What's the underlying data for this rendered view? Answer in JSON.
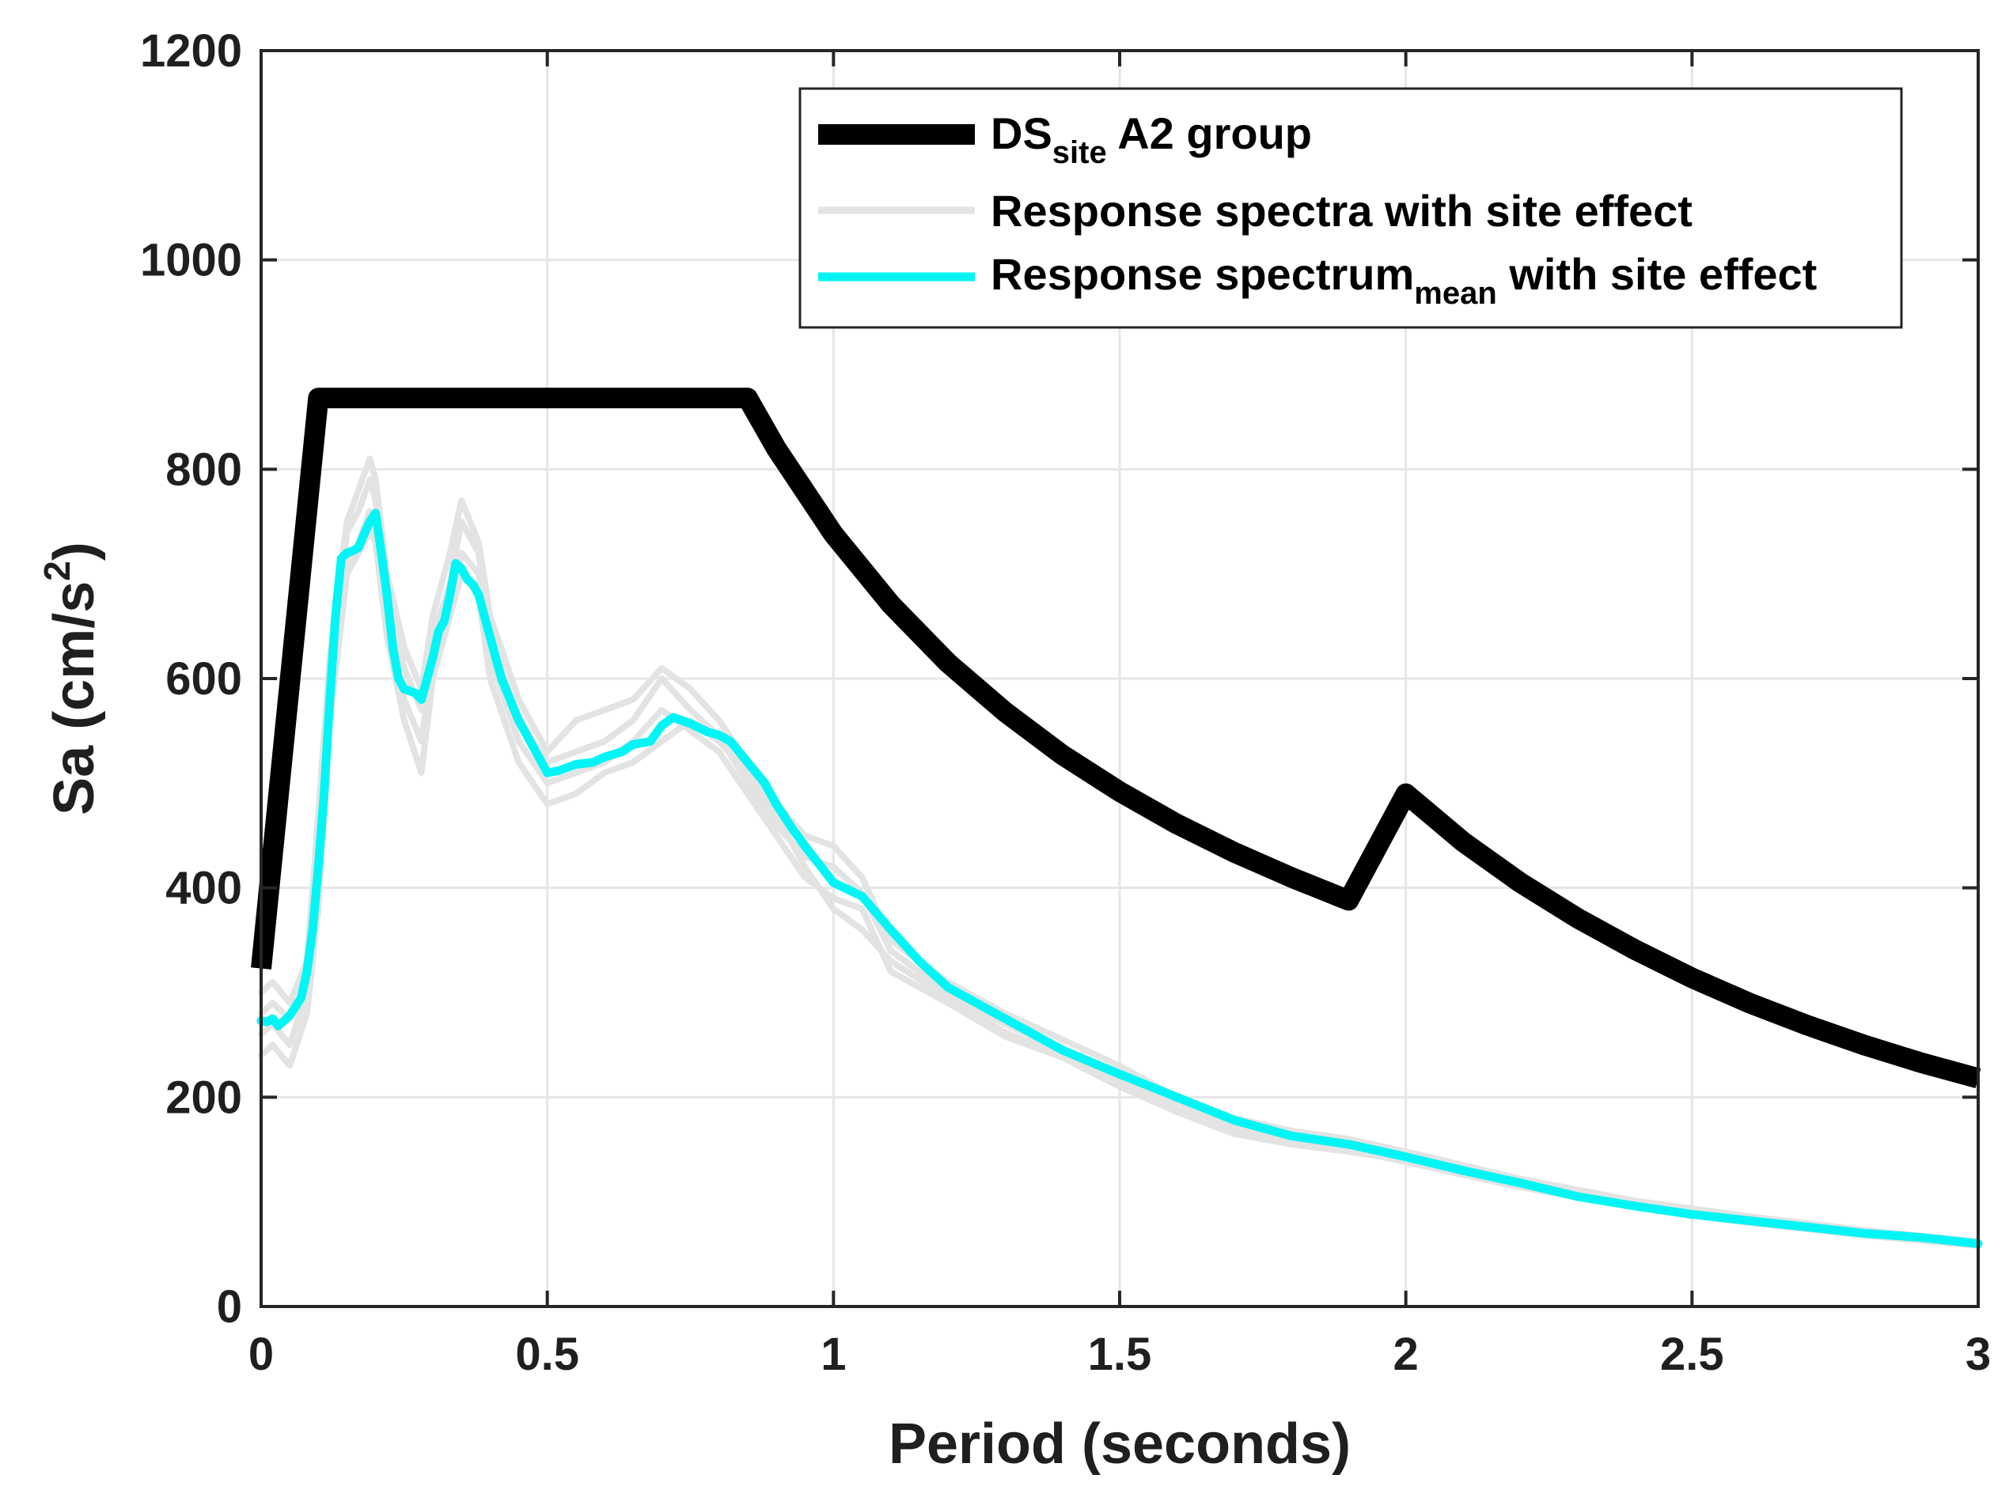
{
  "chart_data": {
    "type": "line",
    "xlabel": "Period (seconds)",
    "ylabel_main": "Sa (cm/s",
    "ylabel_sup": "2",
    "ylabel_close": ")",
    "xlim": [
      0,
      3
    ],
    "ylim": [
      0,
      1200
    ],
    "xticks": [
      0,
      0.5,
      1,
      1.5,
      2,
      2.5,
      3
    ],
    "xtick_labels": [
      "0",
      "0.5",
      "1",
      "1.5",
      "2",
      "2.5",
      "3"
    ],
    "yticks": [
      0,
      200,
      400,
      600,
      800,
      1000,
      1200
    ],
    "ytick_labels": [
      "0",
      "200",
      "400",
      "600",
      "800",
      "1000",
      "1200"
    ],
    "grid": true,
    "legend_position": "top-right",
    "legend": [
      {
        "main": "DS",
        "sub": "site",
        "rest": " A2 group",
        "color": "#000000"
      },
      {
        "main": "Response spectra with site effect",
        "sub": "",
        "rest": "",
        "color": "#e3e3e3"
      },
      {
        "main": "Response spectrum",
        "sub": "mean",
        "rest": " with site effect",
        "color": "#00f5f5"
      }
    ],
    "series": [
      {
        "role": "design",
        "color": "#000000",
        "x": [
          0,
          0.1,
          0.85,
          0.9,
          1.0,
          1.1,
          1.2,
          1.3,
          1.4,
          1.5,
          1.6,
          1.7,
          1.8,
          1.9,
          2.0,
          2.1,
          2.2,
          2.3,
          2.4,
          2.5,
          2.6,
          2.7,
          2.8,
          2.9,
          3.0
        ],
        "y": [
          323,
          868,
          868,
          820,
          738,
          671,
          615,
          568,
          527,
          492,
          461,
          434,
          410,
          388,
          490,
          444,
          405,
          371,
          341,
          314,
          290,
          269,
          250,
          233,
          218
        ]
      },
      {
        "role": "records",
        "color": "#e3e3e3",
        "x": [
          0,
          0.02,
          0.05,
          0.08,
          0.1,
          0.12,
          0.15,
          0.17,
          0.19,
          0.2,
          0.22,
          0.25,
          0.28,
          0.3,
          0.33,
          0.35,
          0.38,
          0.4,
          0.45,
          0.5,
          0.55,
          0.6,
          0.65,
          0.7,
          0.75,
          0.8,
          0.85,
          0.9,
          0.95,
          1.0,
          1.05,
          1.1,
          1.2,
          1.3,
          1.4,
          1.5,
          1.6,
          1.7,
          1.8,
          1.9,
          2.0,
          2.2,
          2.4,
          2.6,
          2.8,
          3.0
        ],
        "y": [
          280,
          290,
          275,
          310,
          420,
          600,
          740,
          760,
          790,
          770,
          680,
          610,
          570,
          640,
          690,
          750,
          720,
          640,
          560,
          520,
          530,
          540,
          560,
          600,
          570,
          545,
          500,
          460,
          430,
          420,
          395,
          340,
          300,
          270,
          245,
          220,
          195,
          172,
          162,
          155,
          142,
          118,
          98,
          82,
          70,
          60
        ]
      },
      {
        "role": "records",
        "color": "#e3e3e3",
        "x": [
          0,
          0.02,
          0.05,
          0.08,
          0.1,
          0.12,
          0.15,
          0.17,
          0.19,
          0.2,
          0.22,
          0.25,
          0.28,
          0.3,
          0.33,
          0.35,
          0.38,
          0.4,
          0.45,
          0.5,
          0.55,
          0.6,
          0.65,
          0.7,
          0.75,
          0.8,
          0.85,
          0.9,
          0.95,
          1.0,
          1.05,
          1.1,
          1.2,
          1.3,
          1.4,
          1.5,
          1.6,
          1.7,
          1.8,
          1.9,
          2.0,
          2.2,
          2.4,
          2.6,
          2.8,
          3.0
        ],
        "y": [
          240,
          250,
          230,
          280,
          380,
          560,
          700,
          720,
          740,
          730,
          640,
          560,
          510,
          600,
          660,
          700,
          680,
          600,
          520,
          480,
          490,
          510,
          520,
          540,
          560,
          540,
          510,
          470,
          420,
          380,
          360,
          330,
          295,
          262,
          240,
          215,
          188,
          168,
          158,
          150,
          138,
          114,
          95,
          80,
          68,
          58
        ]
      },
      {
        "role": "records",
        "color": "#e3e3e3",
        "x": [
          0,
          0.02,
          0.05,
          0.08,
          0.1,
          0.12,
          0.15,
          0.17,
          0.19,
          0.2,
          0.22,
          0.25,
          0.28,
          0.3,
          0.33,
          0.35,
          0.38,
          0.4,
          0.45,
          0.5,
          0.55,
          0.6,
          0.65,
          0.7,
          0.75,
          0.8,
          0.85,
          0.9,
          0.95,
          1.0,
          1.05,
          1.1,
          1.2,
          1.3,
          1.4,
          1.5,
          1.6,
          1.7,
          1.8,
          1.9,
          2.0,
          2.2,
          2.4,
          2.6,
          2.8,
          3.0
        ],
        "y": [
          300,
          310,
          290,
          330,
          470,
          620,
          750,
          780,
          810,
          790,
          700,
          630,
          590,
          660,
          720,
          770,
          730,
          660,
          580,
          530,
          560,
          570,
          580,
          610,
          590,
          560,
          520,
          480,
          450,
          440,
          410,
          350,
          310,
          280,
          255,
          230,
          200,
          180,
          168,
          160,
          148,
          122,
          101,
          86,
          73,
          62
        ]
      },
      {
        "role": "records",
        "color": "#e3e3e3",
        "x": [
          0,
          0.02,
          0.05,
          0.08,
          0.1,
          0.12,
          0.15,
          0.17,
          0.19,
          0.2,
          0.22,
          0.25,
          0.28,
          0.3,
          0.33,
          0.35,
          0.38,
          0.4,
          0.45,
          0.5,
          0.55,
          0.6,
          0.65,
          0.7,
          0.75,
          0.8,
          0.85,
          0.9,
          0.95,
          1.0,
          1.05,
          1.1,
          1.2,
          1.3,
          1.4,
          1.5,
          1.6,
          1.7,
          1.8,
          1.9,
          2.0,
          2.2,
          2.4,
          2.6,
          2.8,
          3.0
        ],
        "y": [
          260,
          270,
          250,
          300,
          400,
          580,
          710,
          730,
          760,
          740,
          650,
          580,
          540,
          620,
          670,
          720,
          700,
          620,
          540,
          500,
          510,
          520,
          540,
          570,
          550,
          530,
          490,
          450,
          410,
          390,
          380,
          320,
          290,
          258,
          238,
          210,
          186,
          165,
          155,
          148,
          140,
          116,
          96,
          81,
          69,
          59
        ]
      },
      {
        "role": "mean",
        "color": "#00f5f5",
        "x": [
          0,
          0.01,
          0.02,
          0.03,
          0.05,
          0.07,
          0.08,
          0.09,
          0.1,
          0.11,
          0.12,
          0.13,
          0.14,
          0.15,
          0.16,
          0.17,
          0.18,
          0.19,
          0.2,
          0.21,
          0.22,
          0.23,
          0.24,
          0.25,
          0.26,
          0.27,
          0.28,
          0.29,
          0.3,
          0.31,
          0.32,
          0.33,
          0.34,
          0.35,
          0.36,
          0.37,
          0.38,
          0.4,
          0.42,
          0.45,
          0.48,
          0.5,
          0.52,
          0.55,
          0.58,
          0.6,
          0.63,
          0.65,
          0.68,
          0.7,
          0.72,
          0.75,
          0.78,
          0.8,
          0.82,
          0.85,
          0.88,
          0.9,
          0.93,
          0.95,
          1.0,
          1.05,
          1.1,
          1.15,
          1.2,
          1.3,
          1.4,
          1.5,
          1.6,
          1.7,
          1.8,
          1.9,
          2.0,
          2.1,
          2.2,
          2.3,
          2.4,
          2.5,
          2.6,
          2.7,
          2.8,
          2.9,
          3.0
        ],
        "y": [
          273,
          272,
          275,
          268,
          278,
          295,
          320,
          360,
          420,
          490,
          580,
          660,
          715,
          720,
          722,
          725,
          738,
          750,
          758,
          720,
          680,
          630,
          600,
          590,
          588,
          586,
          580,
          600,
          620,
          645,
          655,
          680,
          710,
          705,
          695,
          690,
          680,
          640,
          600,
          560,
          530,
          510,
          512,
          518,
          520,
          525,
          530,
          537,
          540,
          555,
          563,
          557,
          549,
          546,
          540,
          520,
          500,
          480,
          455,
          440,
          405,
          392,
          360,
          330,
          305,
          275,
          245,
          222,
          200,
          178,
          163,
          155,
          143,
          130,
          118,
          105,
          96,
          88,
          82,
          76,
          70,
          66,
          60
        ]
      }
    ]
  }
}
